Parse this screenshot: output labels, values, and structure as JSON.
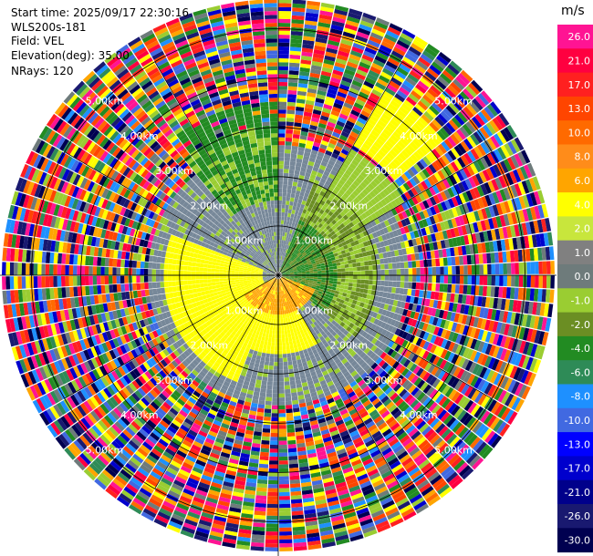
{
  "header": {
    "start_time": "Start time: 2025/09/17 22:30:16",
    "site": "WLS200s-181",
    "field": "Field: VEL",
    "elevation": "Elevation(deg): 35.00",
    "nrays": "NRays: 120"
  },
  "chart_data": {
    "type": "heatmap",
    "projection": "polar-ppi",
    "field": "VEL",
    "n_rays": 120,
    "range_rings_km": [
      1.0,
      2.0,
      3.0,
      4.0,
      5.0
    ],
    "range_ring_labels": [
      "1.00km",
      "2.00km",
      "3.00km",
      "4.00km",
      "5.00km"
    ],
    "colorbar": {
      "unit": "m/s",
      "ticks": [
        "26.0",
        "21.0",
        "17.0",
        "13.0",
        "10.0",
        "8.0",
        "6.0",
        "4.0",
        "2.0",
        "1.0",
        "0.0",
        "-1.0",
        "-2.0",
        "-4.0",
        "-6.0",
        "-8.0",
        "-10.0",
        "-13.0",
        "-17.0",
        "-21.0",
        "-26.0",
        "-30.0"
      ],
      "colors": [
        "#ff1493",
        "#ff0040",
        "#ff2020",
        "#ff4500",
        "#ff6a00",
        "#ff8c1a",
        "#ffa500",
        "#ffff00",
        "#c8e63c",
        "#808080",
        "#6e7b7b",
        "#9acd32",
        "#6b8e23",
        "#228b22",
        "#2e8b57",
        "#1e90ff",
        "#4169e1",
        "#0000ff",
        "#0000cd",
        "#00008b",
        "#191970",
        "#000050"
      ]
    },
    "regions": [
      {
        "name": "near-zero",
        "range_km": [
          0,
          2.8
        ],
        "velocity": 0.0
      },
      {
        "name": "receding-west",
        "az_deg": [
          200,
          290
        ],
        "range_km": [
          0.3,
          2.3
        ],
        "velocity": 4.0
      },
      {
        "name": "receding-south-core",
        "az_deg": [
          110,
          240
        ],
        "range_km": [
          0,
          0.8
        ],
        "velocity": 6.0
      },
      {
        "name": "approaching-east",
        "az_deg": [
          20,
          130
        ],
        "range_km": [
          0.2,
          2.0
        ],
        "velocity": -2.5
      },
      {
        "name": "approaching-north-arc",
        "az_deg": [
          320,
          360
        ],
        "range_km": [
          1.5,
          3.5
        ],
        "velocity": -5.0
      },
      {
        "name": "receding-northeast",
        "az_deg": [
          30,
          50
        ],
        "range_km": [
          2.8,
          4.3
        ],
        "velocity": 4.0
      },
      {
        "name": "noise",
        "range_km": [
          3.0,
          5.6
        ],
        "velocity": "random"
      }
    ]
  }
}
